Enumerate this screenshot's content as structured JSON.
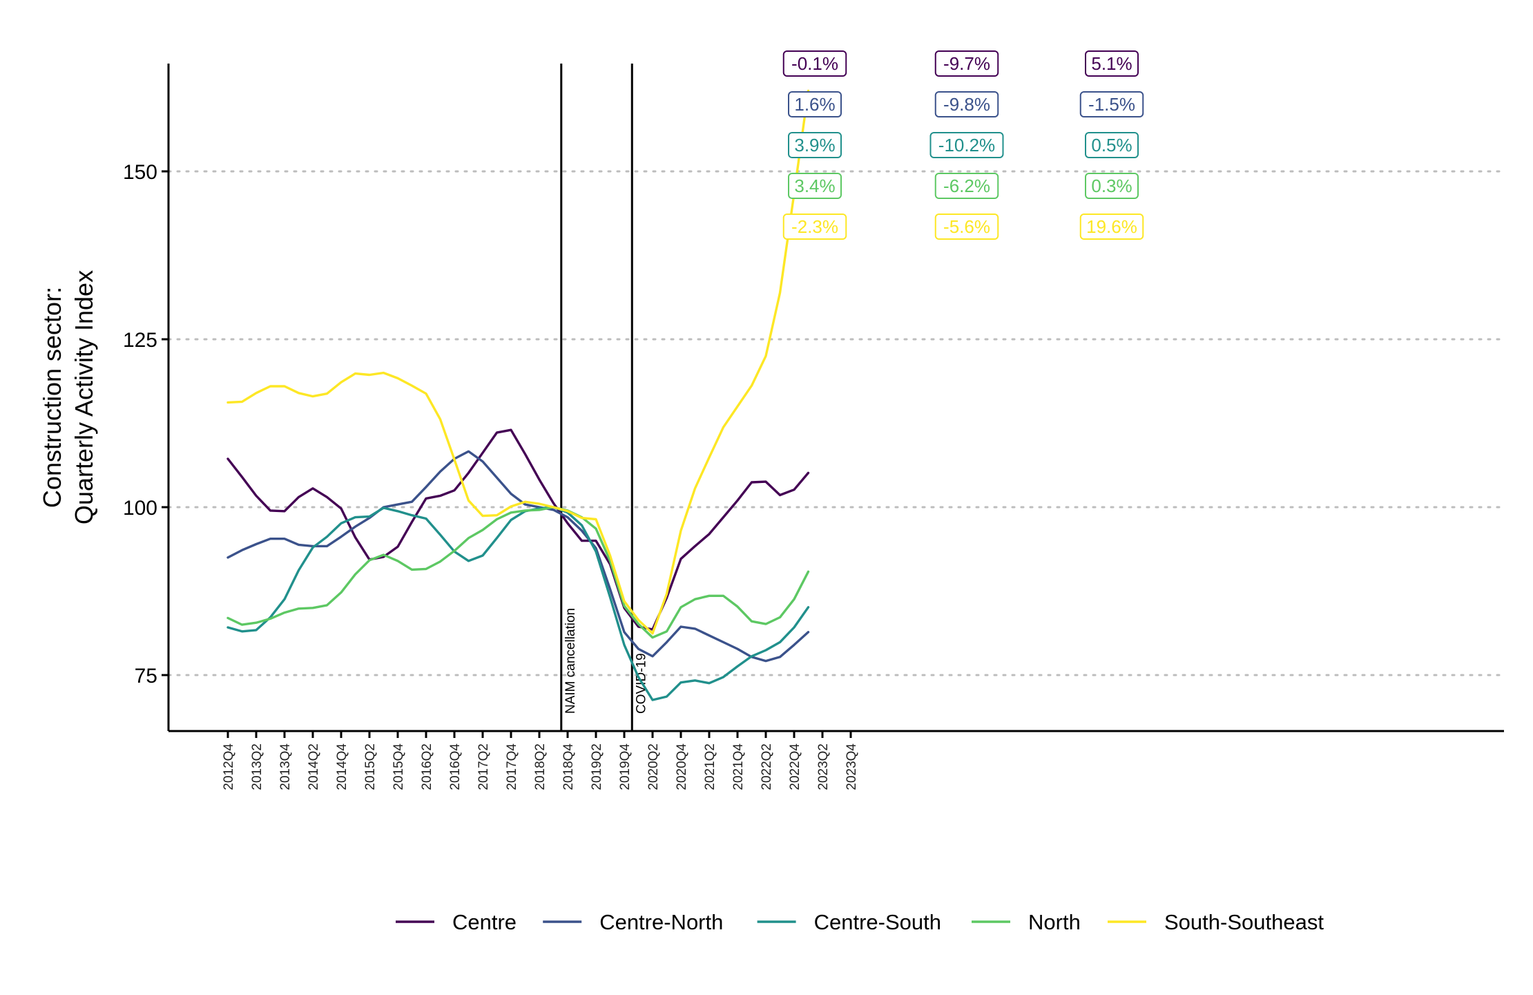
{
  "chart_data": {
    "type": "line",
    "ylabel": [
      "Construction sector:",
      "Quarterly Activity Index"
    ],
    "xlabel": "",
    "ylim": [
      67,
      166
    ],
    "yticks": [
      75,
      100,
      125,
      150
    ],
    "grid": "horizontal dotted at y ticks",
    "x_axis_ticks": [
      "2012Q4",
      "2013Q2",
      "2013Q4",
      "2014Q2",
      "2014Q4",
      "2015Q2",
      "2015Q4",
      "2016Q2",
      "2016Q4",
      "2017Q2",
      "2017Q4",
      "2018Q2",
      "2018Q4",
      "2019Q2",
      "2019Q4",
      "2020Q2",
      "2020Q4",
      "2021Q2",
      "2021Q4",
      "2022Q2",
      "2022Q4",
      "2023Q2",
      "2023Q4"
    ],
    "x": [
      "2012Q4",
      "2013Q1",
      "2013Q2",
      "2013Q3",
      "2013Q4",
      "2014Q1",
      "2014Q2",
      "2014Q3",
      "2014Q4",
      "2015Q1",
      "2015Q2",
      "2015Q3",
      "2015Q4",
      "2016Q1",
      "2016Q2",
      "2016Q3",
      "2016Q4",
      "2017Q1",
      "2017Q2",
      "2017Q3",
      "2017Q4",
      "2018Q1",
      "2018Q2",
      "2018Q3",
      "2018Q4",
      "2019Q1",
      "2019Q2",
      "2019Q3",
      "2019Q4",
      "2020Q1",
      "2020Q2",
      "2020Q3",
      "2020Q4",
      "2021Q1",
      "2021Q2",
      "2021Q3",
      "2021Q4",
      "2022Q1",
      "2022Q2",
      "2022Q3",
      "2022Q4",
      "2023Q1"
    ],
    "series": [
      {
        "name": "Centre",
        "color": "#440154",
        "values": [
          107.2,
          104.5,
          101.7,
          99.5,
          99.4,
          101.5,
          102.8,
          101.5,
          99.8,
          95.5,
          92.2,
          92.6,
          94.1,
          97.8,
          101.3,
          101.7,
          102.5,
          105.1,
          108.1,
          111.1,
          111.5,
          107.9,
          104.1,
          100.6,
          97.6,
          95.0,
          95.0,
          91.5,
          85.0,
          82.2,
          81.8,
          86.5,
          92.3,
          94.2,
          96.0,
          98.5,
          101.0,
          103.7,
          103.8,
          101.8,
          102.6,
          105.1
        ]
      },
      {
        "name": "Centre-North",
        "color": "#3B528B",
        "values": [
          92.5,
          93.6,
          94.5,
          95.3,
          95.3,
          94.4,
          94.2,
          94.2,
          95.6,
          97.1,
          98.4,
          100.0,
          100.4,
          100.8,
          103.0,
          105.3,
          107.2,
          108.3,
          106.8,
          104.4,
          102.0,
          100.4,
          100.0,
          99.6,
          98.5,
          96.5,
          93.9,
          87.8,
          81.4,
          78.9,
          77.8,
          79.9,
          82.2,
          81.9,
          80.9,
          79.9,
          78.9,
          77.7,
          77.1,
          77.7,
          79.5,
          81.4
        ]
      },
      {
        "name": "Centre-South",
        "color": "#21908C",
        "values": [
          82.1,
          81.5,
          81.7,
          83.6,
          86.3,
          90.6,
          94.0,
          95.6,
          97.6,
          98.5,
          98.6,
          99.9,
          99.4,
          98.8,
          98.3,
          95.9,
          93.4,
          92.0,
          92.8,
          95.4,
          98.1,
          99.4,
          99.8,
          100.0,
          99.2,
          97.3,
          93.4,
          86.6,
          79.5,
          74.7,
          71.3,
          71.8,
          73.9,
          74.2,
          73.8,
          74.7,
          76.3,
          77.8,
          78.7,
          79.9,
          82.1,
          85.1
        ]
      },
      {
        "name": "North",
        "color": "#5DC863",
        "values": [
          83.5,
          82.5,
          82.8,
          83.4,
          84.3,
          84.9,
          85.0,
          85.4,
          87.3,
          90.0,
          92.1,
          92.9,
          92.0,
          90.7,
          90.8,
          91.9,
          93.5,
          95.4,
          96.6,
          98.2,
          99.2,
          99.5,
          99.6,
          100.0,
          99.5,
          98.5,
          96.8,
          92.0,
          85.3,
          82.6,
          80.6,
          81.5,
          85.1,
          86.3,
          86.8,
          86.8,
          85.2,
          83.0,
          82.6,
          83.6,
          86.3,
          90.4
        ]
      },
      {
        "name": "South-Southeast",
        "color": "#FDE725",
        "values": [
          115.6,
          115.7,
          117.0,
          118.0,
          118.0,
          117.0,
          116.5,
          116.9,
          118.6,
          119.9,
          119.7,
          120.0,
          119.2,
          118.1,
          116.9,
          113.1,
          107.1,
          101.0,
          98.7,
          98.8,
          100.1,
          100.8,
          100.5,
          100.0,
          99.4,
          98.4,
          98.2,
          92.8,
          86.0,
          83.2,
          81.2,
          87.1,
          96.5,
          102.8,
          107.4,
          111.9,
          115.0,
          118.1,
          122.5,
          131.9,
          146.7,
          162.0
        ]
      }
    ],
    "events": [
      {
        "label": "NAIM cancellation",
        "x_after": "2018Q3"
      },
      {
        "label": "COVID-19",
        "x_after": "2019Q4"
      }
    ],
    "annotations": [
      {
        "event": "start",
        "items": [
          {
            "series": "Centre",
            "text": "-0.1%"
          },
          {
            "series": "Centre-North",
            "text": "1.6%"
          },
          {
            "series": "Centre-South",
            "text": "3.9%"
          },
          {
            "series": "North",
            "text": "3.4%"
          },
          {
            "series": "South-Southeast",
            "text": "-2.3%"
          }
        ]
      },
      {
        "event": "NAIM cancellation",
        "items": [
          {
            "series": "Centre",
            "text": "-9.7%"
          },
          {
            "series": "Centre-North",
            "text": "-9.8%"
          },
          {
            "series": "Centre-South",
            "text": "-10.2%"
          },
          {
            "series": "North",
            "text": "-6.2%"
          },
          {
            "series": "South-Southeast",
            "text": "-5.6%"
          }
        ]
      },
      {
        "event": "COVID-19",
        "items": [
          {
            "series": "Centre",
            "text": "5.1%"
          },
          {
            "series": "Centre-North",
            "text": "-1.5%"
          },
          {
            "series": "Centre-South",
            "text": "0.5%"
          },
          {
            "series": "North",
            "text": "0.3%"
          },
          {
            "series": "South-Southeast",
            "text": "19.6%"
          }
        ]
      }
    ],
    "legend": {
      "position": "bottom",
      "entries": [
        "Centre",
        "Centre-North",
        "Centre-South",
        "North",
        "South-Southeast"
      ]
    }
  }
}
